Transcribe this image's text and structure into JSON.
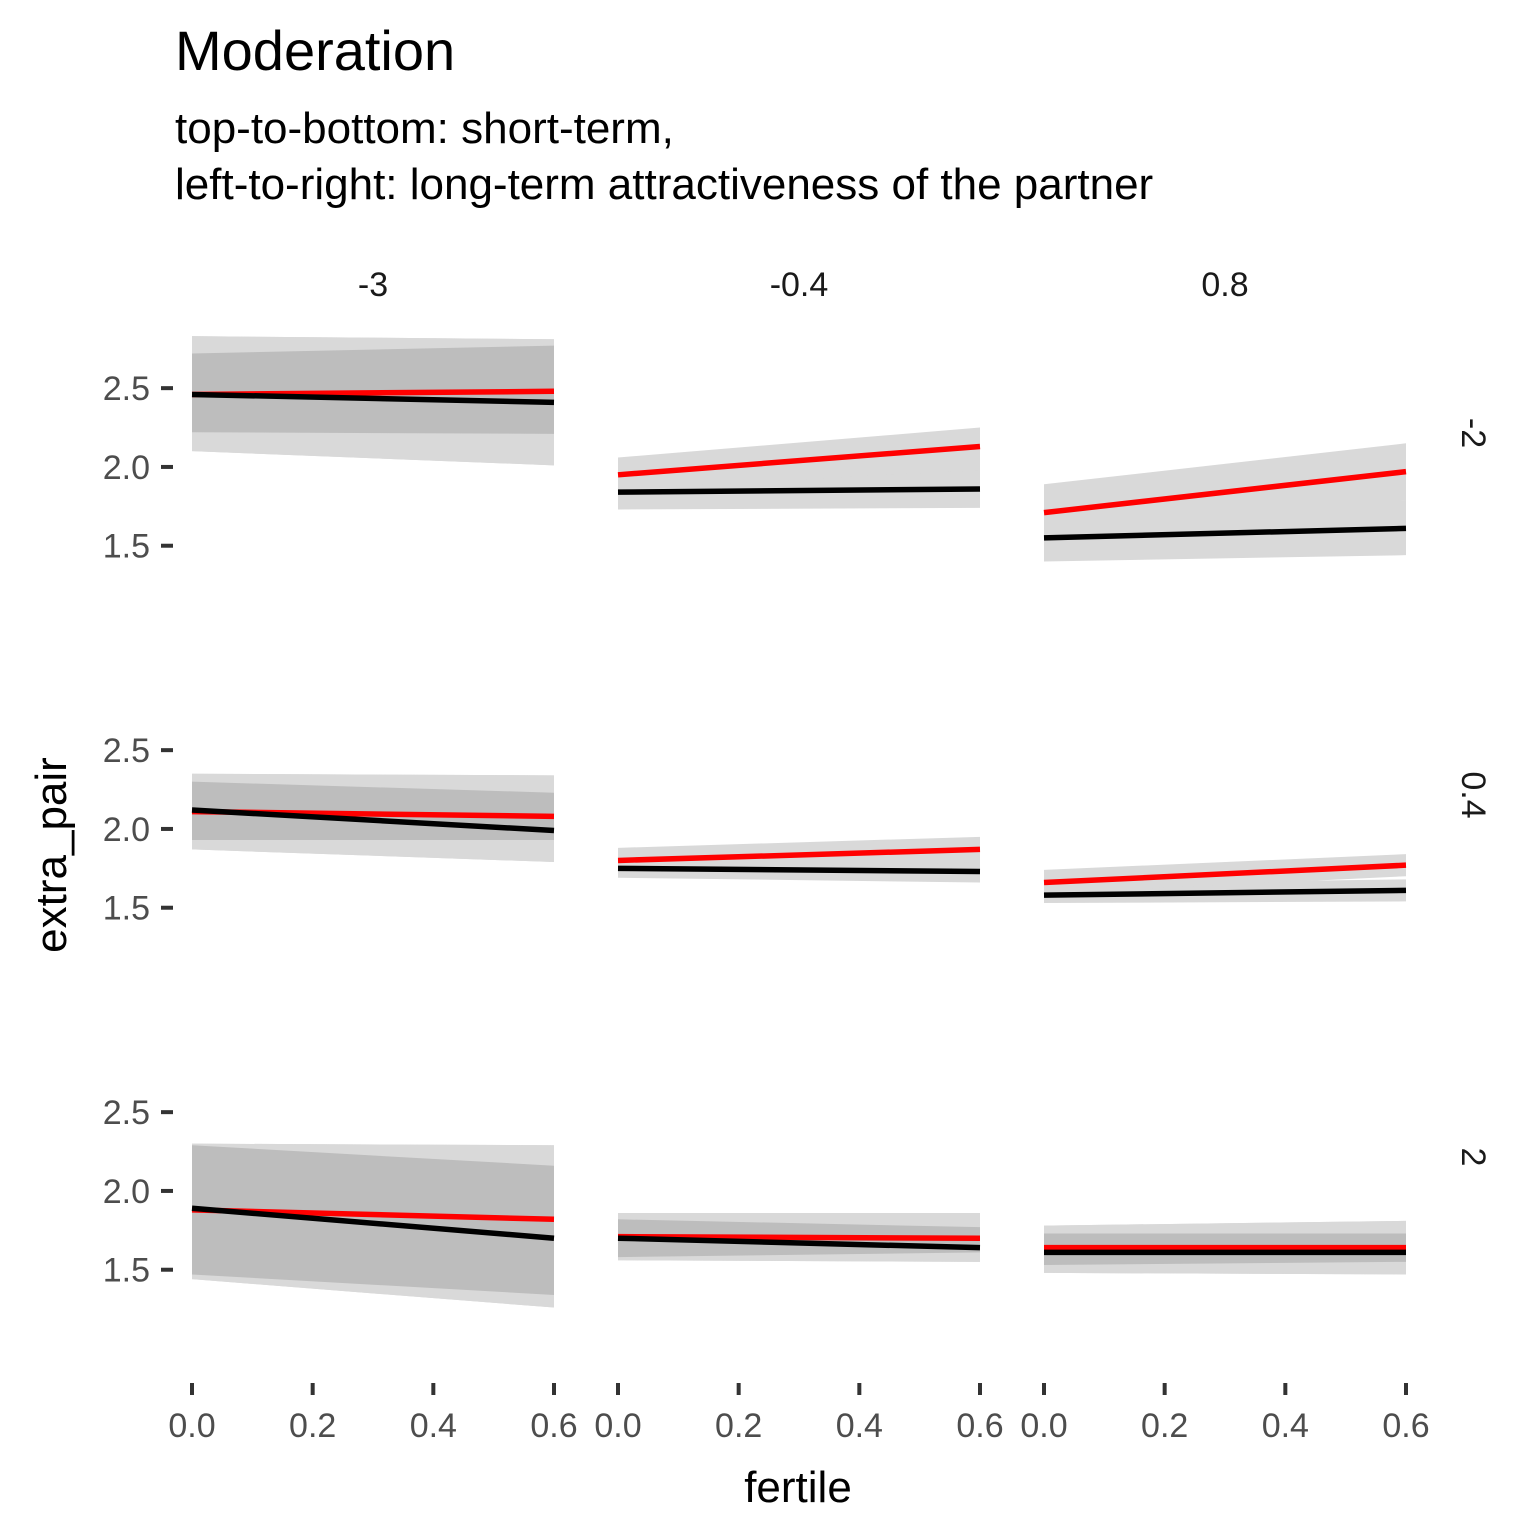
{
  "title": "Moderation",
  "subtitle_lines": [
    "top-to-bottom: short-term,",
    "left-to-right: long-term attractiveness of the partner"
  ],
  "chart_data": {
    "type": "line",
    "title": "Moderation",
    "xlabel": "fertile",
    "ylabel": "extra_pair",
    "xlim": [
      0,
      0.6
    ],
    "ylim": [
      1.2,
      2.85
    ],
    "x_ticks": [
      "0.0",
      "0.2",
      "0.4",
      "0.6"
    ],
    "y_ticks": [
      "1.5",
      "2.0",
      "2.5"
    ],
    "col_labels": [
      "-3",
      "-0.4",
      "0.8"
    ],
    "row_labels": [
      "-2",
      "0.4",
      "2"
    ],
    "grid": false,
    "colors": {
      "red_line": "#ff0000",
      "black_line": "#000000",
      "band": "#bdbdbd",
      "band_outer": "#d9d9d9"
    },
    "panels": [
      {
        "row": "-2",
        "col": "-3",
        "red": {
          "x": [
            0,
            0.6
          ],
          "y": [
            2.46,
            2.48
          ],
          "outer": [
            [
              2.83,
              2.1
            ],
            [
              2.81,
              2.01
            ]
          ],
          "inner": [
            [
              2.72,
              2.22
            ],
            [
              2.77,
              2.21
            ]
          ]
        },
        "black": {
          "x": [
            0,
            0.6
          ],
          "y": [
            2.46,
            2.41
          ],
          "outer": [
            [
              2.83,
              2.1
            ],
            [
              2.81,
              2.01
            ]
          ],
          "inner": [
            [
              2.72,
              2.22
            ],
            [
              2.77,
              2.21
            ]
          ]
        }
      },
      {
        "row": "-2",
        "col": "-0.4",
        "red": {
          "x": [
            0,
            0.6
          ],
          "y": [
            1.95,
            2.13
          ],
          "outer": [
            [
              2.06,
              1.86
            ],
            [
              2.25,
              1.98
            ]
          ]
        },
        "black": {
          "x": [
            0,
            0.6
          ],
          "y": [
            1.84,
            1.86
          ],
          "outer": [
            [
              1.95,
              1.73
            ],
            [
              1.99,
              1.74
            ]
          ]
        }
      },
      {
        "row": "-2",
        "col": "0.8",
        "red": {
          "x": [
            0,
            0.6
          ],
          "y": [
            1.71,
            1.97
          ],
          "outer": [
            [
              1.89,
              1.57
            ],
            [
              2.15,
              1.79
            ]
          ]
        },
        "black": {
          "x": [
            0,
            0.6
          ],
          "y": [
            1.55,
            1.61
          ],
          "outer": [
            [
              1.7,
              1.4
            ],
            [
              1.79,
              1.44
            ]
          ]
        }
      },
      {
        "row": "0.4",
        "col": "-3",
        "red": {
          "x": [
            0,
            0.6
          ],
          "y": [
            2.11,
            2.08
          ],
          "outer": [
            [
              2.35,
              1.87
            ],
            [
              2.34,
              1.79
            ]
          ],
          "inner": [
            [
              2.3,
              1.93
            ],
            [
              2.23,
              1.93
            ]
          ]
        },
        "black": {
          "x": [
            0,
            0.6
          ],
          "y": [
            2.12,
            1.99
          ],
          "outer": [
            [
              2.35,
              1.87
            ],
            [
              2.34,
              1.79
            ]
          ],
          "inner": [
            [
              2.3,
              1.93
            ],
            [
              2.23,
              1.93
            ]
          ]
        }
      },
      {
        "row": "0.4",
        "col": "-0.4",
        "red": {
          "x": [
            0,
            0.6
          ],
          "y": [
            1.8,
            1.87
          ],
          "outer": [
            [
              1.88,
              1.73
            ],
            [
              1.95,
              1.79
            ]
          ]
        },
        "black": {
          "x": [
            0,
            0.6
          ],
          "y": [
            1.75,
            1.73
          ],
          "outer": [
            [
              1.82,
              1.69
            ],
            [
              1.8,
              1.66
            ]
          ]
        }
      },
      {
        "row": "0.4",
        "col": "0.8",
        "red": {
          "x": [
            0,
            0.6
          ],
          "y": [
            1.66,
            1.77
          ],
          "outer": [
            [
              1.74,
              1.59
            ],
            [
              1.84,
              1.7
            ]
          ]
        },
        "black": {
          "x": [
            0,
            0.6
          ],
          "y": [
            1.58,
            1.61
          ],
          "outer": [
            [
              1.65,
              1.53
            ],
            [
              1.68,
              1.54
            ]
          ]
        }
      },
      {
        "row": "2",
        "col": "-3",
        "red": {
          "x": [
            0,
            0.6
          ],
          "y": [
            1.88,
            1.82
          ],
          "outer": [
            [
              2.3,
              1.44
            ],
            [
              2.29,
              1.26
            ]
          ],
          "inner": [
            [
              2.29,
              1.47
            ],
            [
              2.16,
              1.34
            ]
          ]
        },
        "black": {
          "x": [
            0,
            0.6
          ],
          "y": [
            1.89,
            1.7
          ],
          "outer": [
            [
              2.3,
              1.44
            ],
            [
              2.29,
              1.26
            ]
          ],
          "inner": [
            [
              2.29,
              1.47
            ],
            [
              2.16,
              1.34
            ]
          ]
        }
      },
      {
        "row": "2",
        "col": "-0.4",
        "red": {
          "x": [
            0,
            0.6
          ],
          "y": [
            1.71,
            1.7
          ],
          "outer": [
            [
              1.86,
              1.56
            ],
            [
              1.86,
              1.55
            ]
          ],
          "inner": [
            [
              1.82,
              1.58
            ],
            [
              1.77,
              1.61
            ]
          ]
        },
        "black": {
          "x": [
            0,
            0.6
          ],
          "y": [
            1.7,
            1.64
          ],
          "outer": [
            [
              1.86,
              1.56
            ],
            [
              1.86,
              1.55
            ]
          ],
          "inner": [
            [
              1.82,
              1.58
            ],
            [
              1.77,
              1.61
            ]
          ]
        }
      },
      {
        "row": "2",
        "col": "0.8",
        "red": {
          "x": [
            0,
            0.6
          ],
          "y": [
            1.64,
            1.64
          ],
          "outer": [
            [
              1.78,
              1.48
            ],
            [
              1.81,
              1.47
            ]
          ],
          "inner": [
            [
              1.73,
              1.53
            ],
            [
              1.73,
              1.55
            ]
          ]
        },
        "black": {
          "x": [
            0,
            0.6
          ],
          "y": [
            1.61,
            1.61
          ],
          "outer": [
            [
              1.78,
              1.48
            ],
            [
              1.81,
              1.47
            ]
          ],
          "inner": [
            [
              1.73,
              1.53
            ],
            [
              1.73,
              1.55
            ]
          ]
        }
      }
    ]
  }
}
